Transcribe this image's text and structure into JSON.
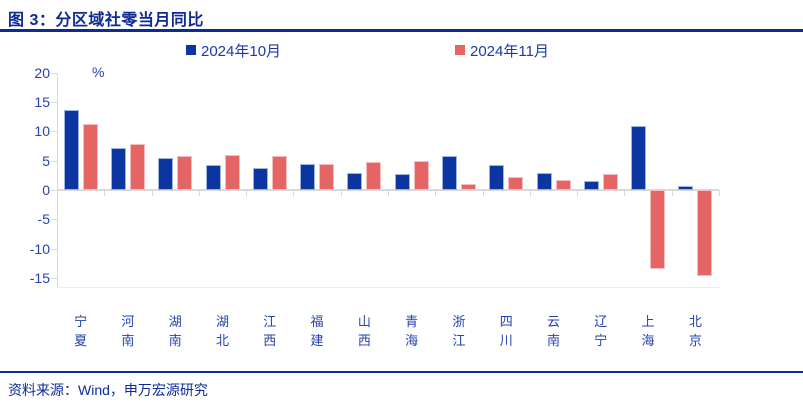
{
  "header": {
    "title": "图 3：分区域社零当月同比"
  },
  "footer": {
    "source": "资料来源：Wind，申万宏源研究"
  },
  "colors": {
    "accent_navy": "#0E2A96",
    "axis_text_blue": "#2443AE",
    "bar_blue": "#0B35A0",
    "bar_red": "#E56464",
    "axis_gray": "#D9D9D9"
  },
  "chart_data": {
    "type": "bar",
    "title": "图 3：分区域社零当月同比",
    "unit_label": "%",
    "categories": [
      "宁夏",
      "河南",
      "湖南",
      "湖北",
      "江西",
      "福建",
      "山西",
      "青海",
      "浙江",
      "四川",
      "云南",
      "辽宁",
      "上海",
      "北京"
    ],
    "series": [
      {
        "name": "2024年10月",
        "color": "#0B35A0",
        "values": [
          13.7,
          7.1,
          5.4,
          4.3,
          3.7,
          4.4,
          2.9,
          2.8,
          5.8,
          4.2,
          2.9,
          1.5,
          10.9,
          0.6
        ]
      },
      {
        "name": "2024年11月",
        "color": "#E56464",
        "values": [
          11.3,
          7.9,
          5.8,
          6.0,
          5.8,
          4.4,
          4.8,
          4.9,
          1.0,
          2.2,
          1.7,
          2.8,
          -13.5,
          -14.7
        ]
      }
    ],
    "y_ticks": [
      20,
      15,
      10,
      5,
      0,
      -5,
      -10,
      -15
    ],
    "ylim": [
      -16.5,
      20
    ],
    "grid": false,
    "legend_position": "top-center"
  }
}
